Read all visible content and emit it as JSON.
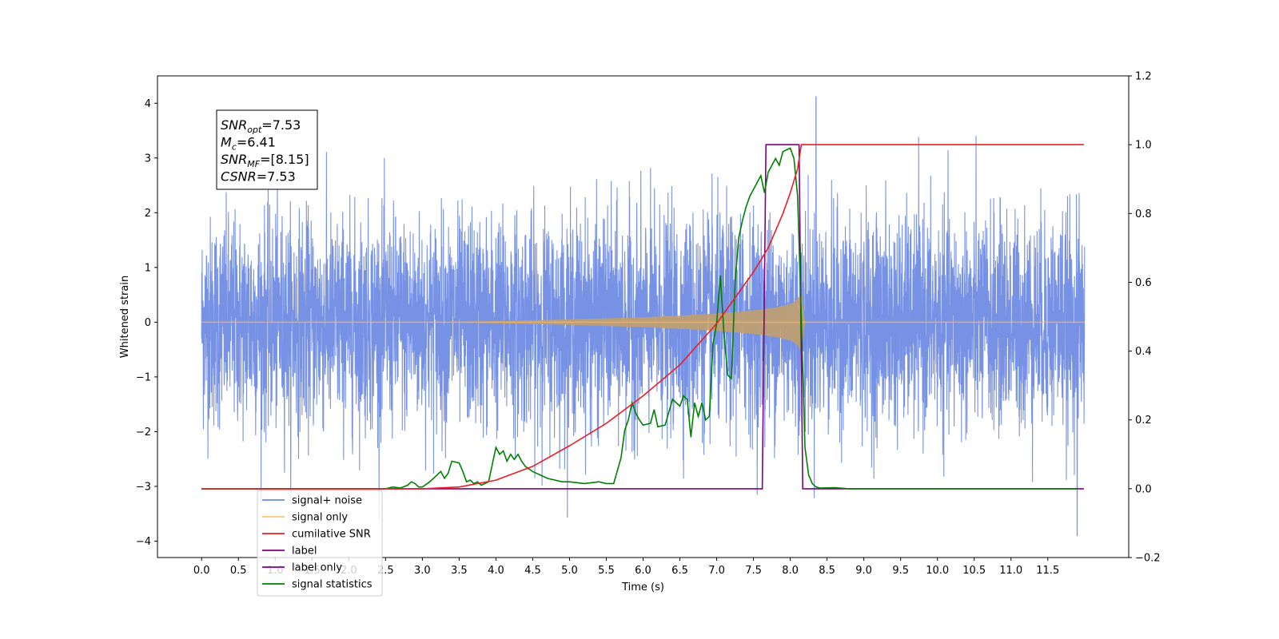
{
  "chart_data": {
    "type": "line",
    "title": "",
    "xlabel": "Time (s)",
    "ylabel": "Whitened strain",
    "y2label": "",
    "xlim": [
      -0.6,
      12.6
    ],
    "ylim": [
      -4.3,
      4.5
    ],
    "y2lim": [
      -0.2,
      1.2
    ],
    "x_ticks": [
      0.0,
      0.5,
      1.0,
      1.5,
      2.0,
      2.5,
      3.0,
      3.5,
      4.0,
      4.5,
      5.0,
      5.5,
      6.0,
      6.5,
      7.0,
      7.5,
      8.0,
      8.5,
      9.0,
      9.5,
      10.0,
      10.5,
      11.0,
      11.5
    ],
    "x_tick_labels": [
      "0.0",
      "0.5",
      "1.0",
      "1.5",
      "2.0",
      "2.5",
      "3.0",
      "3.5",
      "4.0",
      "4.5",
      "5.0",
      "5.5",
      "6.0",
      "6.5",
      "7.0",
      "7.5",
      "8.0",
      "8.5",
      "9.0",
      "9.5",
      "10.0",
      "10.5",
      "11.0",
      "11.5"
    ],
    "y_ticks": [
      -4,
      -3,
      -2,
      -1,
      0,
      1,
      2,
      3,
      4
    ],
    "y_tick_labels": [
      "−4",
      "−3",
      "−2",
      "−1",
      "0",
      "1",
      "2",
      "3",
      "4"
    ],
    "y2_ticks": [
      -0.2,
      0.0,
      0.2,
      0.4,
      0.6,
      0.8,
      1.0,
      1.2
    ],
    "y2_tick_labels": [
      "−0.2",
      "0.0",
      "0.2",
      "0.4",
      "0.6",
      "0.8",
      "1.0",
      "1.2"
    ],
    "legend_position": "lower-left",
    "series": [
      {
        "name": "signal+ noise",
        "color": "#6b89e3",
        "axis": "left",
        "kind": "noise",
        "x_range": [
          0.0,
          12.0
        ],
        "envelope": [
          -3.0,
          3.0
        ],
        "max": 4.12,
        "max_at": 8.35,
        "min": -3.9,
        "min_at": 11.9
      },
      {
        "name": "signal only",
        "color": "#ffb14e",
        "axis": "left",
        "kind": "chirp",
        "x": [
          0.0,
          3.0,
          4.0,
          5.0,
          6.0,
          6.5,
          7.0,
          7.3,
          7.6,
          7.8,
          8.0,
          8.1,
          8.15,
          8.2,
          12.0
        ],
        "amplitude": [
          0.0,
          0.0,
          0.02,
          0.05,
          0.09,
          0.12,
          0.16,
          0.19,
          0.23,
          0.27,
          0.33,
          0.42,
          0.55,
          0.0,
          0.0
        ]
      },
      {
        "name": "cumilative SNR",
        "color": "#ee1c25",
        "axis": "right",
        "x": [
          0.0,
          3.0,
          3.5,
          4.0,
          4.5,
          5.0,
          5.5,
          6.0,
          6.5,
          7.0,
          7.5,
          7.7,
          7.9,
          8.0,
          8.1,
          8.15,
          8.2,
          11.99
        ],
        "y": [
          0.0,
          0.0,
          0.005,
          0.025,
          0.065,
          0.125,
          0.19,
          0.27,
          0.36,
          0.48,
          0.63,
          0.7,
          0.8,
          0.86,
          0.93,
          1.0,
          1.0,
          1.0
        ]
      },
      {
        "name": "label",
        "color": "#800080",
        "axis": "right",
        "x": [
          0.0,
          7.62,
          7.67,
          8.12,
          8.17,
          11.99
        ],
        "y": [
          0.0,
          0.0,
          1.0,
          1.0,
          0.0,
          0.0
        ]
      },
      {
        "name": "label only",
        "color": "#800080",
        "axis": "right",
        "x": [],
        "y": []
      },
      {
        "name": "signal statistics",
        "color": "#008000",
        "axis": "right",
        "x": [
          0.0,
          2.5,
          2.6,
          2.7,
          2.8,
          2.85,
          2.9,
          2.95,
          3.0,
          3.1,
          3.2,
          3.25,
          3.3,
          3.35,
          3.4,
          3.5,
          3.55,
          3.6,
          3.65,
          3.7,
          3.75,
          3.8,
          3.9,
          4.0,
          4.05,
          4.1,
          4.15,
          4.2,
          4.25,
          4.3,
          4.35,
          4.4,
          4.5,
          4.7,
          4.9,
          5.0,
          5.2,
          5.4,
          5.5,
          5.6,
          5.7,
          5.75,
          5.8,
          5.85,
          5.9,
          5.95,
          6.0,
          6.1,
          6.15,
          6.2,
          6.3,
          6.4,
          6.5,
          6.55,
          6.6,
          6.65,
          6.7,
          6.75,
          6.8,
          6.85,
          6.9,
          6.95,
          7.0,
          7.05,
          7.1,
          7.15,
          7.2,
          7.25,
          7.3,
          7.35,
          7.4,
          7.45,
          7.5,
          7.55,
          7.6,
          7.65,
          7.7,
          7.75,
          7.8,
          7.85,
          7.9,
          7.95,
          8.0,
          8.05,
          8.1,
          8.15,
          8.2,
          8.25,
          8.3,
          8.35,
          8.4,
          8.6,
          8.8,
          11.9
        ],
        "y": [
          0.0,
          0.0,
          0.005,
          0.002,
          0.01,
          0.02,
          0.015,
          0.005,
          0.005,
          0.02,
          0.04,
          0.05,
          0.03,
          0.045,
          0.08,
          0.075,
          0.05,
          0.02,
          0.025,
          0.015,
          0.02,
          0.01,
          0.02,
          0.12,
          0.1,
          0.11,
          0.08,
          0.1,
          0.085,
          0.1,
          0.08,
          0.065,
          0.05,
          0.03,
          0.02,
          0.02,
          0.015,
          0.02,
          0.015,
          0.015,
          0.09,
          0.17,
          0.2,
          0.25,
          0.22,
          0.2,
          0.185,
          0.19,
          0.23,
          0.18,
          0.185,
          0.26,
          0.24,
          0.27,
          0.26,
          0.15,
          0.25,
          0.21,
          0.25,
          0.2,
          0.21,
          0.42,
          0.48,
          0.62,
          0.45,
          0.33,
          0.32,
          0.6,
          0.73,
          0.78,
          0.82,
          0.85,
          0.87,
          0.89,
          0.91,
          0.86,
          0.92,
          0.94,
          0.96,
          0.94,
          0.98,
          0.985,
          0.99,
          0.96,
          0.85,
          0.5,
          0.12,
          0.04,
          0.015,
          0.005,
          0.002,
          0.003,
          0.0,
          0.0
        ]
      }
    ]
  },
  "annotation": {
    "lines": [
      {
        "base": "SNR",
        "sub": "opt",
        "value": "=7.53"
      },
      {
        "base": "M",
        "sub": "c",
        "value": "=6.41"
      },
      {
        "base": "SNR",
        "sub": "MF",
        "value": "=[8.15]"
      },
      {
        "base": "CSNR",
        "sub": "",
        "value": "=7.53"
      }
    ]
  }
}
